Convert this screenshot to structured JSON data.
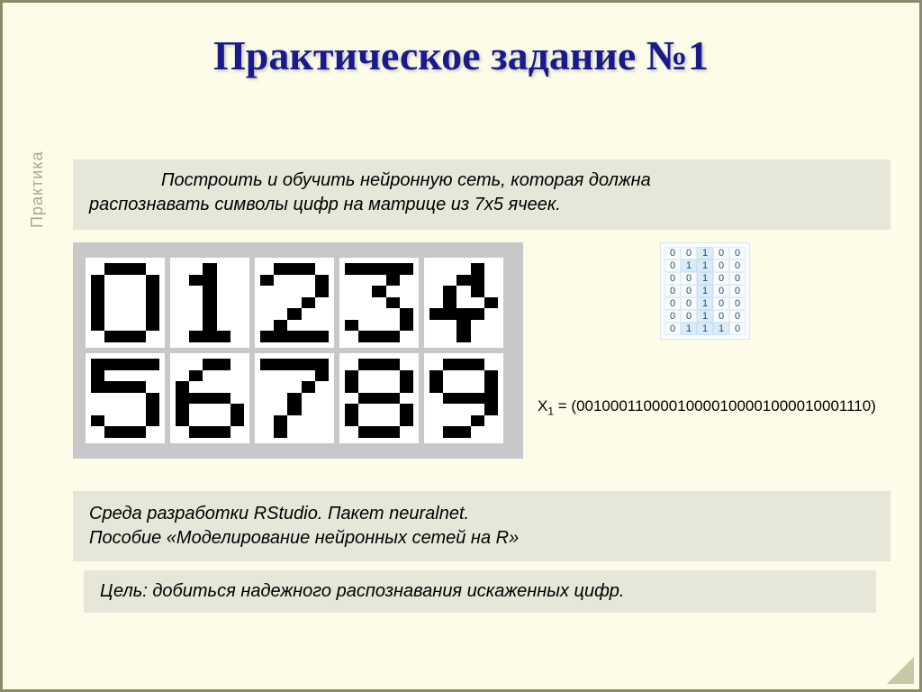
{
  "title": "Практическое задание №1",
  "side_label": "Практика",
  "task": {
    "line1": "Построить и обучить нейронную сеть, которая должна",
    "line2": "распознавать символы цифр на матрице из 7х5 ячеек."
  },
  "digits": {
    "0": "0111010001100011000110001100010111000000",
    "1": "0010001100001000010000100001000111000000",
    "2": "0111010001000010001000100010001111100000",
    "3": "1111100010001000001000001100010111000000",
    "4": "0001000110010100100111110001000010000000",
    "5": "1111110000111100000100001100010111000000",
    "6": "0011001000100001111010001100010111000000",
    "7": "1111100001000100010000100010000100000000",
    "8": "0111010001100010111010001100010111000000",
    "9": "0111010001100010111100001000100110000000"
  },
  "binary_matrix": {
    "rows": [
      [
        "0",
        "0",
        "1",
        "0",
        "0"
      ],
      [
        "0",
        "1",
        "1",
        "0",
        "0"
      ],
      [
        "0",
        "0",
        "1",
        "0",
        "0"
      ],
      [
        "0",
        "0",
        "1",
        "0",
        "0"
      ],
      [
        "0",
        "0",
        "1",
        "0",
        "0"
      ],
      [
        "0",
        "0",
        "1",
        "0",
        "0"
      ],
      [
        "0",
        "1",
        "1",
        "1",
        "0"
      ]
    ],
    "highlight_col": 2
  },
  "x1": {
    "prefix": "X",
    "sub": "1",
    "value": " = (00100011000010000100001000010001110)"
  },
  "env": {
    "line1": "Среда разработки RStudio. Пакет neuralnet.",
    "line2": "Пособие «Моделирование нейронных сетей на R»"
  },
  "goal": "Цель: добиться надежного распознавания искаженных цифр."
}
